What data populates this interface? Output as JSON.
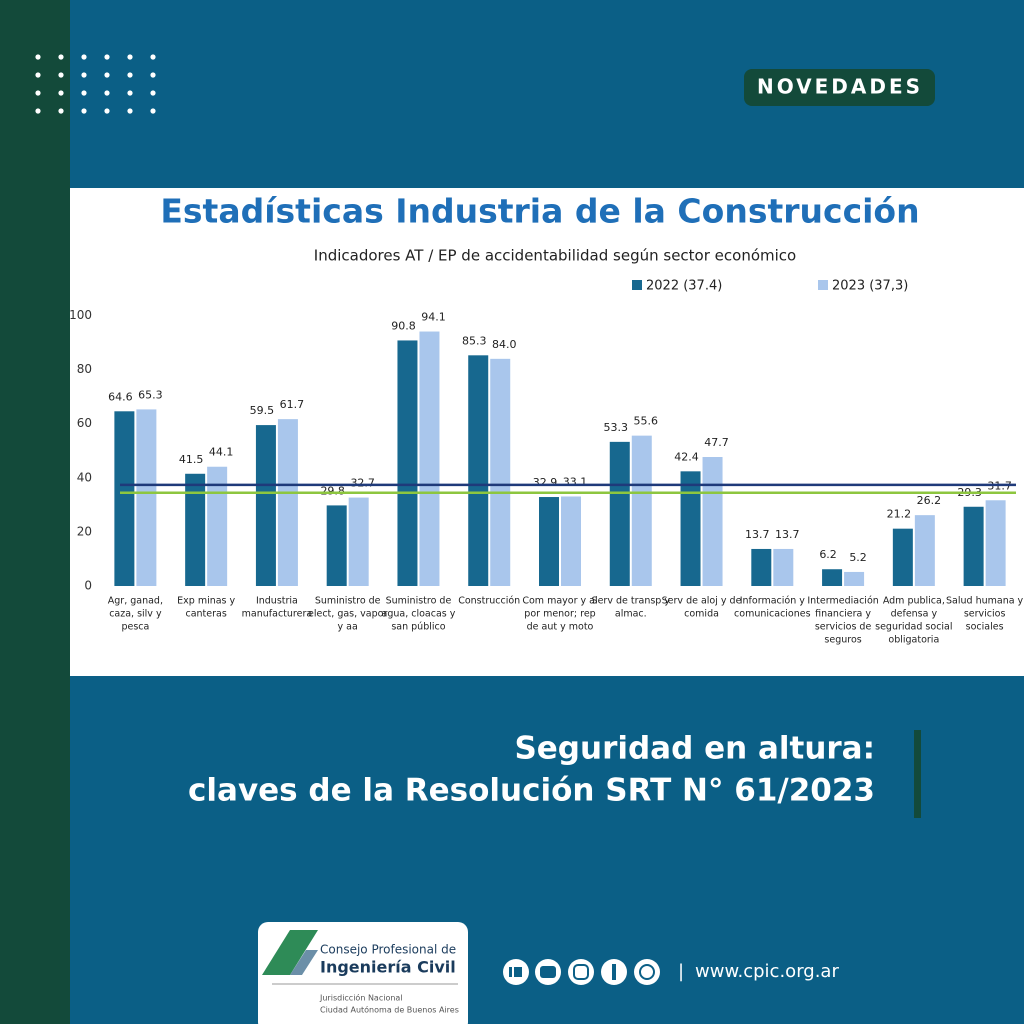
{
  "badge": "NOVEDADES",
  "chart_data": {
    "type": "bar",
    "title": "Estadísticas Industria de la Construcción",
    "subtitle": "Indicadores AT / EP de accidentabilidad según sector económico",
    "categories": [
      [
        "Agr, ganad,",
        "caza, silv y",
        "pesca"
      ],
      [
        "Exp minas y",
        "canteras"
      ],
      [
        "Industria",
        "manufacturera"
      ],
      [
        "Suministro de",
        "elect, gas, vapor",
        "y aa"
      ],
      [
        "Suministro de",
        "agua, cloacas y",
        "san público"
      ],
      [
        "Construcción"
      ],
      [
        "Com mayor y al",
        "por menor; rep",
        "de aut y moto"
      ],
      [
        "Serv de transp y",
        "almac."
      ],
      [
        "Serv de aloj y de",
        "comida"
      ],
      [
        "Información y",
        "comunicaciones"
      ],
      [
        "Intermediación",
        "financiera y",
        "servicios de",
        "seguros"
      ],
      [
        "Adm publica,",
        "defensa y",
        "seguridad social",
        "obligatoria"
      ],
      [
        "Salud humana y",
        "servicios",
        "sociales"
      ]
    ],
    "series": [
      {
        "name": "2022 (37.4)",
        "color": "#17688f",
        "values": [
          64.6,
          41.5,
          59.5,
          29.8,
          90.8,
          85.3,
          32.9,
          53.3,
          42.4,
          13.7,
          6.2,
          21.2,
          29.3
        ],
        "value_labels": [
          "64.6",
          "41.5",
          "59.5",
          "29.8",
          "90.8",
          "85.3",
          "32.9",
          "53.3",
          "42.4",
          "13.7",
          "6.2",
          "21.2",
          "29.3"
        ]
      },
      {
        "name": "2023 (37,3)",
        "color": "#a9c6ec",
        "values": [
          65.3,
          44.1,
          61.7,
          32.7,
          94.1,
          84.0,
          33.1,
          55.6,
          47.7,
          13.7,
          5.2,
          26.2,
          31.7
        ],
        "value_labels": [
          "65.3",
          "44.1",
          "61.7",
          "32.7",
          "94.1",
          "84.0",
          "33.1",
          "55.6",
          "47.7",
          "13.7",
          "5.2",
          "26.2",
          "31.7"
        ]
      }
    ],
    "reference_lines": [
      {
        "value": 37.4,
        "color": "#1f3a7a"
      },
      {
        "value": 34.5,
        "color": "#8dc63f"
      }
    ],
    "ylim": [
      0,
      115
    ],
    "yticks": [
      0,
      20,
      40,
      60,
      80,
      100
    ],
    "grid": false
  },
  "headline": [
    "Seguridad en altura:",
    "claves de la Resolución SRT N° 61/2023"
  ],
  "logo": {
    "line1": "Consejo Profesional de",
    "line2": "Ingeniería Civil",
    "line3": "Jurisdicción Nacional",
    "line4": "Ciudad Autónoma de Buenos Aires"
  },
  "footer": {
    "separator": "|",
    "url": "www.cpic.org.ar"
  }
}
